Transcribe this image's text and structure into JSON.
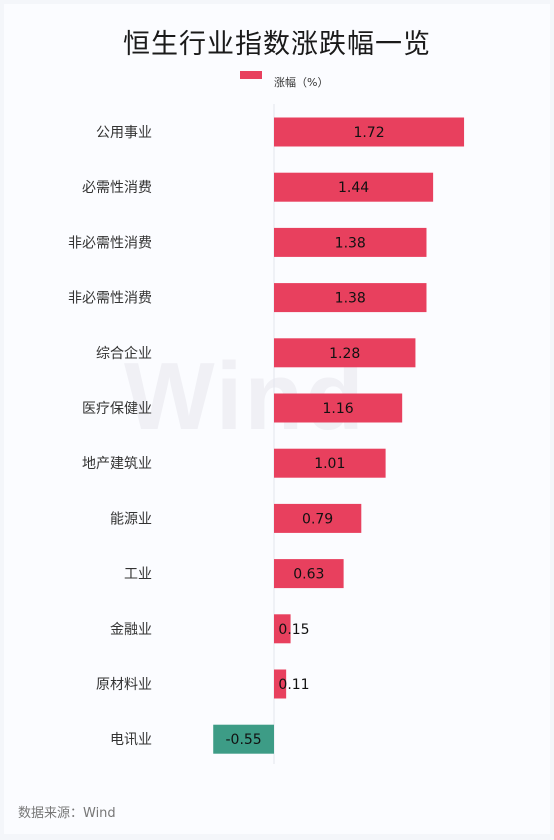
{
  "chart_data": {
    "type": "bar",
    "orientation": "horizontal",
    "title": "恒生行业指数涨跌幅一览",
    "categories": [
      "公用事业",
      "必需性消费",
      "非必需性消费",
      "非必需性消费",
      "综合企业",
      "医疗保健业",
      "地产建筑业",
      "能源业",
      "工业",
      "金融业",
      "原材料业",
      "电讯业"
    ],
    "series": [
      {
        "name": "涨幅（%）",
        "values": [
          1.72,
          1.44,
          1.38,
          1.38,
          1.28,
          1.16,
          1.01,
          0.79,
          0.63,
          0.15,
          0.11,
          -0.55
        ]
      }
    ],
    "positive_color": "#e8405e",
    "negative_color": "#3d9c86",
    "legend_position": "top-center",
    "grid": false
  },
  "watermark": "Wind",
  "source": "数据来源：Wind"
}
